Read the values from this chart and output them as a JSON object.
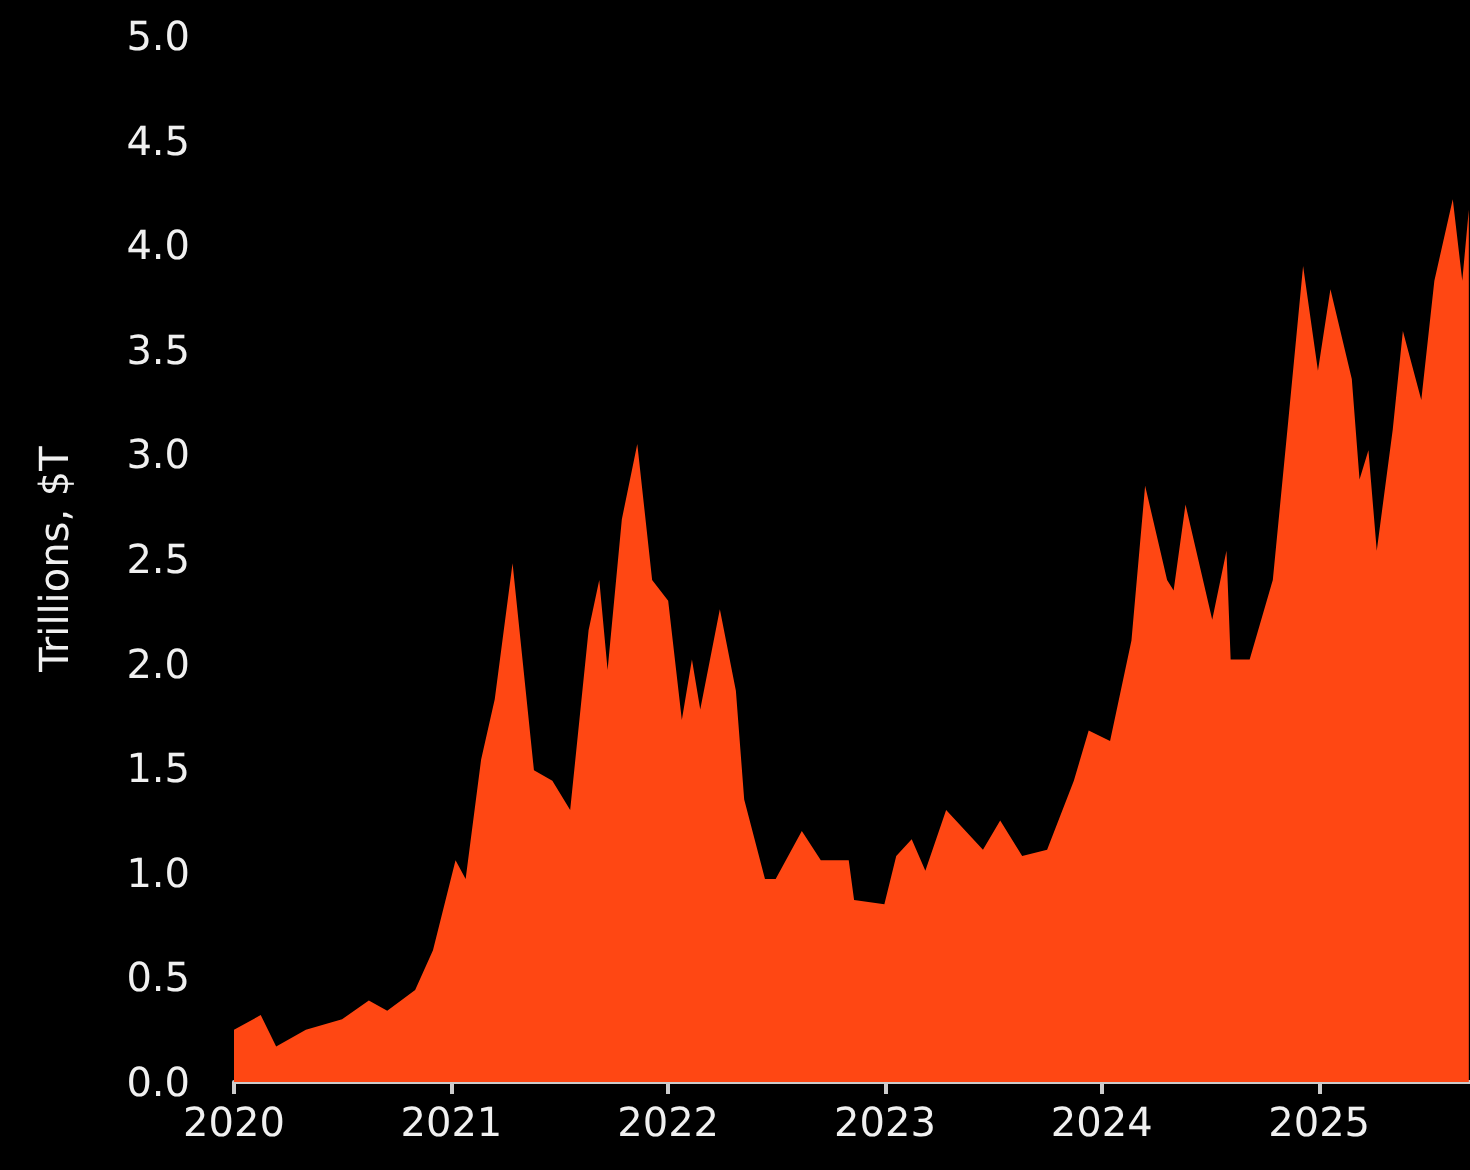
{
  "chart_data": {
    "type": "area",
    "ylabel": "Trillions, $T",
    "x": [
      "2020-01-01",
      "2020-02-15",
      "2020-03-12",
      "2020-05-01",
      "2020-07-01",
      "2020-08-15",
      "2020-09-15",
      "2020-11-01",
      "2020-12-01",
      "2021-01-08",
      "2021-01-25",
      "2021-02-20",
      "2021-03-15",
      "2021-04-14",
      "2021-05-20",
      "2021-06-20",
      "2021-07-20",
      "2021-08-20",
      "2021-09-07",
      "2021-09-21",
      "2021-10-15",
      "2021-11-10",
      "2021-12-05",
      "2022-01-01",
      "2022-01-24",
      "2022-02-10",
      "2022-02-24",
      "2022-03-29",
      "2022-04-25",
      "2022-05-09",
      "2022-06-13",
      "2022-07-01",
      "2022-08-14",
      "2022-09-15",
      "2022-11-01",
      "2022-11-10",
      "2022-12-31",
      "2023-01-20",
      "2023-02-15",
      "2023-03-10",
      "2023-04-14",
      "2023-06-15",
      "2023-07-14",
      "2023-08-20",
      "2023-10-01",
      "2023-11-15",
      "2023-12-10",
      "2024-01-15",
      "2024-02-20",
      "2024-03-14",
      "2024-04-20",
      "2024-05-01",
      "2024-05-21",
      "2024-07-05",
      "2024-07-29",
      "2024-08-05",
      "2024-09-06",
      "2024-10-15",
      "2024-11-10",
      "2024-12-05",
      "2024-12-30",
      "2025-01-20",
      "2025-02-25",
      "2025-03-10",
      "2025-03-25",
      "2025-04-08",
      "2025-05-05",
      "2025-05-22",
      "2025-06-22",
      "2025-07-14",
      "2025-08-14",
      "2025-08-30",
      "2025-09-10"
    ],
    "series": [
      {
        "color": "#ff4713",
        "values": [
          0.25,
          0.32,
          0.17,
          0.25,
          0.3,
          0.39,
          0.34,
          0.44,
          0.63,
          1.06,
          0.97,
          1.54,
          1.83,
          2.48,
          1.49,
          1.44,
          1.3,
          2.16,
          2.4,
          1.97,
          2.69,
          3.05,
          2.4,
          2.3,
          1.73,
          2.02,
          1.78,
          2.26,
          1.87,
          1.35,
          0.97,
          0.97,
          1.2,
          1.06,
          1.06,
          0.87,
          0.85,
          1.08,
          1.16,
          1.01,
          1.3,
          1.11,
          1.25,
          1.08,
          1.11,
          1.44,
          1.68,
          1.63,
          2.11,
          2.85,
          2.4,
          2.35,
          2.76,
          2.21,
          2.54,
          2.02,
          2.02,
          2.4,
          3.16,
          3.9,
          3.4,
          3.79,
          3.36,
          2.88,
          3.02,
          2.54,
          3.12,
          3.59,
          3.26,
          3.83,
          4.22,
          3.83,
          4.17
        ]
      }
    ],
    "xlim": [
      "2020-01-01",
      "2025-09-12"
    ],
    "xticks": [
      "2020",
      "2021",
      "2022",
      "2023",
      "2024",
      "2025"
    ],
    "ylim": [
      0,
      5
    ],
    "yticks": [
      {
        "value": 0,
        "label": "0.0"
      },
      0.5,
      {
        "value": 1,
        "label": "1.0"
      },
      1.5,
      {
        "value": 2,
        "label": "2.0"
      },
      2.5,
      {
        "value": 3,
        "label": "3.0"
      },
      3.5,
      {
        "value": 4,
        "label": "4.0"
      },
      4.5,
      {
        "value": 5,
        "label": "5.0"
      }
    ],
    "grid": false
  }
}
